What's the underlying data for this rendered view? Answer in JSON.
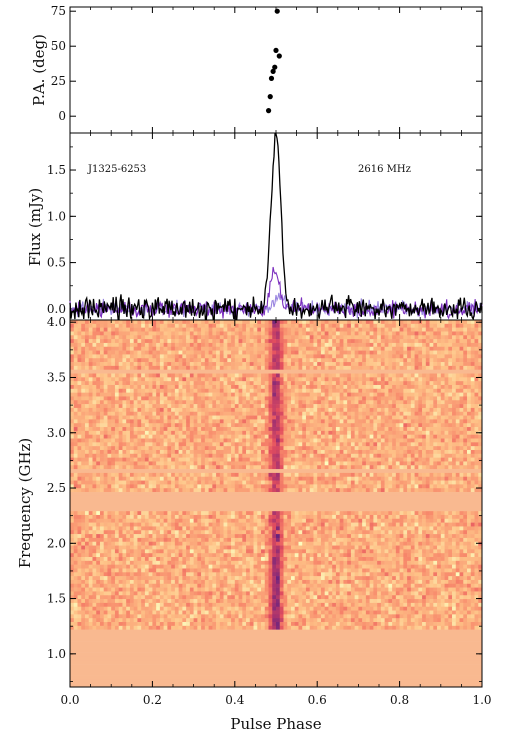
{
  "chart_data": [
    {
      "type": "scatter",
      "panel": "position-angle",
      "ylabel": "P.A. (deg)",
      "xlim": [
        0.0,
        1.0
      ],
      "ylim": [
        -12,
        78
      ],
      "yticks": [
        0,
        25,
        50,
        75
      ],
      "ytick_labels": [
        "0",
        "25",
        "50",
        "75"
      ],
      "points": [
        {
          "x": 0.482,
          "y": 4
        },
        {
          "x": 0.486,
          "y": 14
        },
        {
          "x": 0.489,
          "y": 27
        },
        {
          "x": 0.493,
          "y": 32
        },
        {
          "x": 0.497,
          "y": 35
        },
        {
          "x": 0.5,
          "y": 47
        },
        {
          "x": 0.503,
          "y": 75
        },
        {
          "x": 0.508,
          "y": 43
        }
      ]
    },
    {
      "type": "line",
      "panel": "profile",
      "ylabel": "Flux (mJy)",
      "annotations": {
        "source": "J1325-6253",
        "frequency": "2616 MHz"
      },
      "xlim": [
        0.0,
        1.0
      ],
      "ylim": [
        -0.12,
        1.9
      ],
      "yticks": [
        0.0,
        0.5,
        1.0,
        1.5
      ],
      "ytick_labels": [
        "0.0",
        "0.5",
        "1.0",
        "1.5"
      ],
      "series": [
        {
          "key": "total",
          "color": "#000000",
          "peak": {
            "x": 0.5,
            "y": 1.85,
            "width": 0.012
          },
          "noise": 0.065
        },
        {
          "key": "linear",
          "color": "#7b2fbe",
          "peak": {
            "x": 0.497,
            "y": 0.46,
            "width": 0.01
          },
          "noise": 0.045
        },
        {
          "key": "circular",
          "color": "#9a86e0",
          "peak": {
            "x": 0.51,
            "y": 0.14,
            "width": 0.012
          },
          "noise": 0.04
        }
      ]
    },
    {
      "type": "heatmap",
      "panel": "frequency-phase",
      "xlabel": "Pulse Phase",
      "ylabel": "Frequency (GHz)",
      "xlim": [
        0.0,
        1.0
      ],
      "ylim": [
        0.7,
        4.02
      ],
      "xticks": [
        0.0,
        0.2,
        0.4,
        0.6,
        0.8,
        1.0
      ],
      "xtick_labels": [
        "0.0",
        "0.2",
        "0.4",
        "0.6",
        "0.8",
        "1.0"
      ],
      "yticks": [
        1.0,
        1.5,
        2.0,
        2.5,
        3.0,
        3.5,
        4.0
      ],
      "ytick_labels": [
        "1.0",
        "1.5",
        "2.0",
        "2.5",
        "3.0",
        "3.5",
        "4.0"
      ],
      "pulse_phase": 0.5,
      "masked_color": "#f9b990",
      "masked_bands_ghz": [
        [
          0.7,
          1.22
        ],
        [
          2.28,
          2.45
        ],
        [
          2.62,
          2.68
        ],
        [
          3.52,
          3.58
        ]
      ],
      "colormap": [
        "#fcfdbf",
        "#fec287",
        "#f7866a",
        "#e34e5e",
        "#a8336e",
        "#6a237e",
        "#2e1150"
      ]
    }
  ]
}
